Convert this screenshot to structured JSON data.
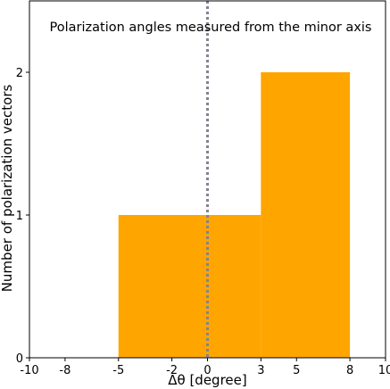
{
  "chart_data": {
    "type": "bar",
    "bins": [
      {
        "x0": -5.0,
        "x1": 3.0,
        "count": 1
      },
      {
        "x0": 3.0,
        "x1": 8.0,
        "count": 2
      }
    ],
    "xlabel": "Δθ [degree]",
    "ylabel": "Number of polarization vectors",
    "xlim": [
      -10,
      10
    ],
    "ylim": [
      0,
      2.5
    ],
    "xticks": [
      {
        "value": -10,
        "label": "-10"
      },
      {
        "value": -8,
        "label": "-8"
      },
      {
        "value": -5,
        "label": "-5"
      },
      {
        "value": -2,
        "label": "-2"
      },
      {
        "value": 0,
        "label": "0"
      },
      {
        "value": 3,
        "label": "3"
      },
      {
        "value": 5,
        "label": "5"
      },
      {
        "value": 8,
        "label": "8"
      },
      {
        "value": 10,
        "label": "10"
      }
    ],
    "yticks": [
      {
        "value": 0,
        "label": "0"
      },
      {
        "value": 1,
        "label": "1"
      },
      {
        "value": 2,
        "label": "2"
      }
    ],
    "reference_line": {
      "x": 0,
      "style": "dotted",
      "color": "#7f8590"
    },
    "annotation": "Polarization angles measured from the minor axis",
    "bar_color": "#ffa500",
    "grid": false
  }
}
